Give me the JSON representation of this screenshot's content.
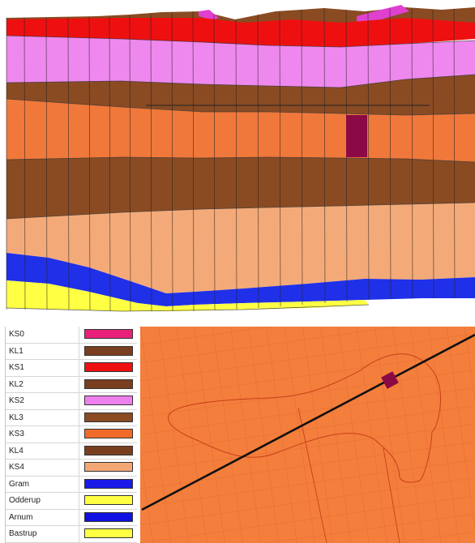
{
  "legend": {
    "items": [
      {
        "label": "KS0",
        "color": "#e8207a"
      },
      {
        "label": "KL1",
        "color": "#7a3f1e"
      },
      {
        "label": "KS1",
        "color": "#ee1010"
      },
      {
        "label": "KL2",
        "color": "#7a3f1e"
      },
      {
        "label": "KS2",
        "color": "#ee80ee"
      },
      {
        "label": "KL3",
        "color": "#8a4b23"
      },
      {
        "label": "KS3",
        "color": "#f06a2a"
      },
      {
        "label": "KL4",
        "color": "#7a3f1e"
      },
      {
        "label": "KS4",
        "color": "#f4a776"
      },
      {
        "label": "Gram",
        "color": "#1a1ae8"
      },
      {
        "label": "Odderup",
        "color": "#ffff44"
      },
      {
        "label": "Arnum",
        "color": "#1010e0"
      },
      {
        "label": "Bastrup",
        "color": "#ffff44"
      }
    ]
  },
  "cross_section": {
    "layer_colors": {
      "ks0": "#e040d0",
      "kl1": "#8a4b23",
      "ks1": "#ee1010",
      "ks2": "#ee88ee",
      "kl3": "#8a4b23",
      "ks3": "#f0783a",
      "kl4": "#8a4b23",
      "ks4": "#f4aa78",
      "gram": "#2030e8",
      "odderup": "#ffff44"
    },
    "well_color": "#8b0a45"
  },
  "map": {
    "background_color": "#f47e3c",
    "grid_color": "#e06830",
    "line_color": "#111111",
    "well_color": "#8b0a45"
  }
}
